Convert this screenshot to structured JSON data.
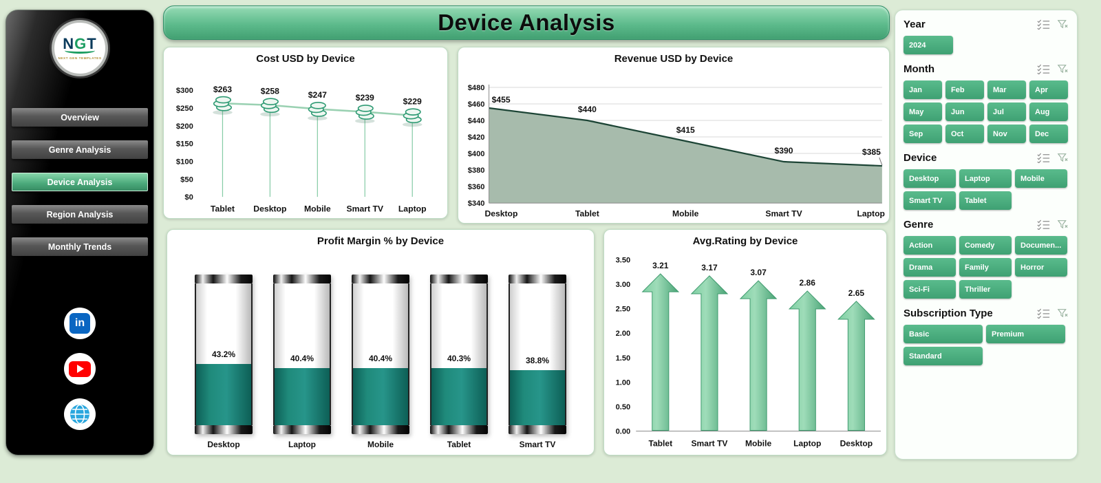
{
  "page": {
    "title": "Device Analysis"
  },
  "sidebar": {
    "logo": {
      "text": "NGT",
      "subtext": "NEXT GEN TEMPLATES"
    },
    "items": [
      {
        "label": "Overview",
        "active": false
      },
      {
        "label": "Genre Analysis",
        "active": false
      },
      {
        "label": "Device Analysis",
        "active": true
      },
      {
        "label": "Region Analysis",
        "active": false
      },
      {
        "label": "Monthly Trends",
        "active": false
      }
    ],
    "social": [
      "linkedin",
      "youtube",
      "globe"
    ]
  },
  "chart_data": [
    {
      "type": "line",
      "title": "Cost USD by Device",
      "categories": [
        "Tablet",
        "Desktop",
        "Mobile",
        "Smart TV",
        "Laptop"
      ],
      "values": [
        263,
        258,
        247,
        239,
        229
      ],
      "labels": [
        "$263",
        "$258",
        "$247",
        "$239",
        "$229"
      ],
      "ylim": [
        0,
        300
      ],
      "ytick_step": 50,
      "ytick_prefix": "$",
      "marker": "coins",
      "grid": false,
      "legend": "none"
    },
    {
      "type": "area",
      "title": "Revenue USD by Device",
      "categories": [
        "Desktop",
        "Tablet",
        "Mobile",
        "Smart TV",
        "Laptop"
      ],
      "values": [
        455,
        440,
        415,
        390,
        385
      ],
      "labels": [
        "$455",
        "$440",
        "$415",
        "$390",
        "$385"
      ],
      "ylim": [
        340,
        480
      ],
      "ytick_step": 20,
      "ytick_prefix": "$",
      "grid": true,
      "legend": "none"
    },
    {
      "type": "bar",
      "style": "cylinder",
      "title": "Profit Margin % by Device",
      "categories": [
        "Desktop",
        "Laptop",
        "Mobile",
        "Tablet",
        "Smart TV"
      ],
      "values": [
        43.2,
        40.4,
        40.4,
        40.3,
        38.8
      ],
      "labels": [
        "43.2%",
        "40.4%",
        "40.4%",
        "40.3%",
        "38.8%"
      ],
      "ylim": [
        0,
        100
      ],
      "legend": "none"
    },
    {
      "type": "bar",
      "style": "arrow",
      "title": "Avg.Rating by Device",
      "categories": [
        "Tablet",
        "Smart TV",
        "Mobile",
        "Laptop",
        "Desktop"
      ],
      "values": [
        3.21,
        3.17,
        3.07,
        2.86,
        2.65
      ],
      "labels": [
        "3.21",
        "3.17",
        "3.07",
        "2.86",
        "2.65"
      ],
      "ylim": [
        0,
        3.5
      ],
      "ytick_step": 0.5,
      "grid": false,
      "legend": "none"
    }
  ],
  "filters": [
    {
      "title": "Year",
      "options": [
        "2024"
      ]
    },
    {
      "title": "Month",
      "options": [
        "Jan",
        "Feb",
        "Mar",
        "Apr",
        "May",
        "Jun",
        "Jul",
        "Aug",
        "Sep",
        "Oct",
        "Nov",
        "Dec"
      ]
    },
    {
      "title": "Device",
      "options": [
        "Desktop",
        "Laptop",
        "Mobile",
        "Smart TV",
        "Tablet"
      ]
    },
    {
      "title": "Genre",
      "options": [
        "Action",
        "Comedy",
        "Documen...",
        "Drama",
        "Family",
        "Horror",
        "Sci-Fi",
        "Thriller"
      ]
    },
    {
      "title": "Subscription Type",
      "options": [
        "Basic",
        "Premium",
        "Standard"
      ]
    }
  ],
  "colors": {
    "accent": "#4cb183",
    "accent_dark": "#2e8f66",
    "teal_fill": "#17796d",
    "area_fill": "#a7bbac",
    "line_dark": "#1c4435",
    "page_bg": "#dcebd6"
  }
}
